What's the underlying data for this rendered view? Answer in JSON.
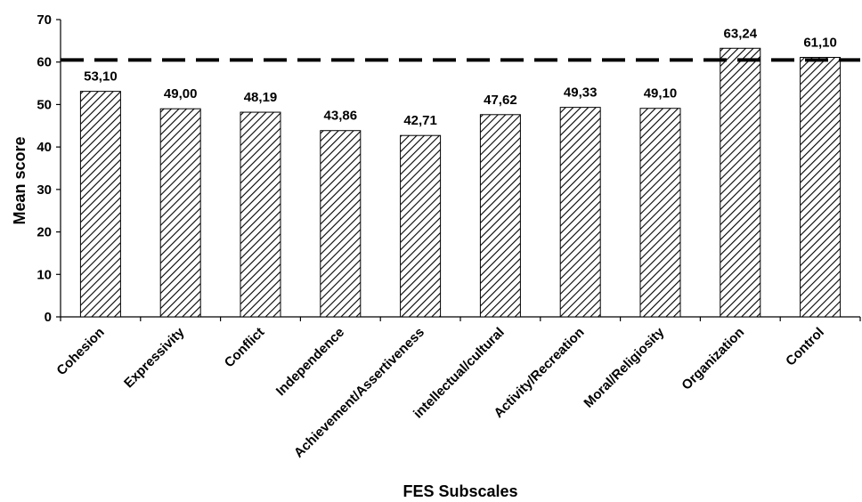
{
  "chart_data": {
    "type": "bar",
    "categories": [
      "Cohesion",
      "Expressivity",
      "Conflict",
      "Independence",
      "Achievement/Assertiveness",
      "intellectual/cultural",
      "Activity/Recreation",
      "Moral/Religiosity",
      "Organization",
      "Control"
    ],
    "values": [
      53.1,
      49.0,
      48.19,
      43.86,
      42.71,
      47.62,
      49.33,
      49.1,
      63.24,
      61.1
    ],
    "data_labels": [
      "53,10",
      "49,00",
      "48,19",
      "43,86",
      "42,71",
      "47,62",
      "49,33",
      "49,10",
      "63,24",
      "61,10"
    ],
    "title": "",
    "xlabel": "FES Subscales",
    "ylabel": "Mean score",
    "ylim": [
      0,
      70
    ],
    "yticks": [
      0,
      10,
      20,
      30,
      40,
      50,
      60,
      70
    ],
    "reference_line": {
      "value": 60.5,
      "style": "dashed"
    },
    "bar_fill": "diagonal-hatch",
    "grid": false,
    "legend": "none",
    "colors": {
      "bar_stroke": "#000000",
      "hatch": "#000000",
      "background": "#ffffff"
    }
  }
}
